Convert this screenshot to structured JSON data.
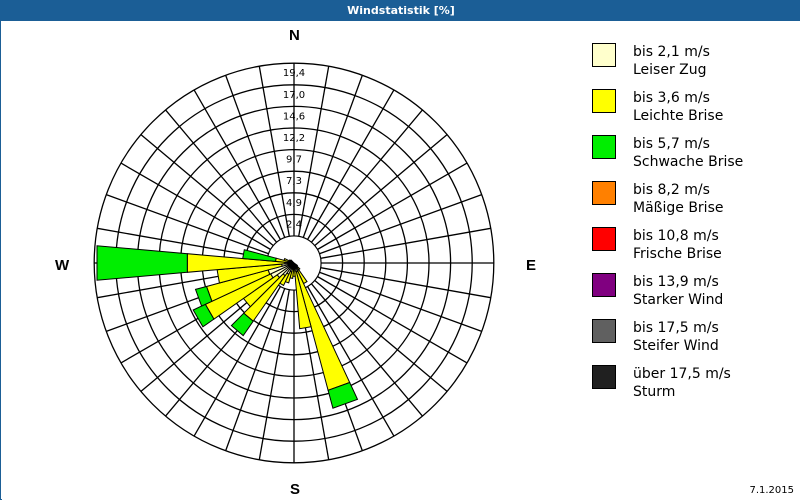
{
  "header": {
    "title": "Windstatistik [%]"
  },
  "compass": {
    "n": "N",
    "e": "E",
    "s": "S",
    "w": "W"
  },
  "ring_labels": [
    "2,4",
    "4,9",
    "7,3",
    "9,7",
    "12,2",
    "14,6",
    "17,0",
    "19,4"
  ],
  "legend": [
    {
      "line1": "bis 2,1 m/s",
      "line2": "Leiser Zug",
      "color": "#ffffcc"
    },
    {
      "line1": "bis 3,6 m/s",
      "line2": "Leichte Brise",
      "color": "#ffff00"
    },
    {
      "line1": "bis 5,7 m/s",
      "line2": "Schwache Brise",
      "color": "#00ee00"
    },
    {
      "line1": "bis 8,2 m/s",
      "line2": "Mäßige Brise",
      "color": "#ff8000"
    },
    {
      "line1": "bis 10,8 m/s",
      "line2": "Frische Brise",
      "color": "#ff0000"
    },
    {
      "line1": "bis 13,9 m/s",
      "line2": "Starker Wind",
      "color": "#800080"
    },
    {
      "line1": "bis 17,5 m/s",
      "line2": "Steifer Wind",
      "color": "#606060"
    },
    {
      "line1": "über 17,5 m/s",
      "line2": "Sturm",
      "color": "#202020"
    }
  ],
  "footer": {
    "date": "7.1.2015"
  },
  "chart_data": {
    "type": "polar-bar (wind rose)",
    "title": "Windstatistik [%]",
    "radial_ticks": [
      2.4,
      4.9,
      7.3,
      9.7,
      12.2,
      14.6,
      17.0,
      19.4
    ],
    "radial_max": 19.4,
    "sector_width_deg": 10,
    "directions_deg_note": "0 = North, clockwise",
    "series_names": [
      "bis 2,1 m/s",
      "bis 3,6 m/s",
      "bis 5,7 m/s"
    ],
    "petals": [
      {
        "dir": 150,
        "cum": [
          0.8,
          2.2,
          2.2
        ]
      },
      {
        "dir": 160,
        "cum": [
          0.9,
          12.8,
          14.6
        ]
      },
      {
        "dir": 170,
        "cum": [
          0.8,
          6.4,
          6.4
        ]
      },
      {
        "dir": 180,
        "cum": [
          0.6,
          1.3,
          1.3
        ]
      },
      {
        "dir": 190,
        "cum": [
          0.6,
          1.5,
          1.5
        ]
      },
      {
        "dir": 200,
        "cum": [
          0.9,
          2.0,
          2.0
        ]
      },
      {
        "dir": 210,
        "cum": [
          1.2,
          2.4,
          2.4
        ]
      },
      {
        "dir": 220,
        "cum": [
          1.5,
          6.9,
          8.6
        ]
      },
      {
        "dir": 230,
        "cum": [
          2.0,
          6.0,
          6.0
        ]
      },
      {
        "dir": 240,
        "cum": [
          2.5,
          9.5,
          10.8
        ]
      },
      {
        "dir": 250,
        "cum": [
          2.6,
          8.8,
          9.9
        ]
      },
      {
        "dir": 260,
        "cum": [
          1.2,
          7.5,
          7.5
        ]
      },
      {
        "dir": 270,
        "cum": [
          0.9,
          10.4,
          19.2
        ]
      },
      {
        "dir": 280,
        "cum": [
          0.4,
          1.8,
          5.0
        ]
      },
      {
        "dir": 290,
        "cum": [
          0.3,
          1.0,
          1.0
        ]
      },
      {
        "dir": 300,
        "cum": [
          0.2,
          0.5,
          0.5
        ]
      },
      {
        "dir": 310,
        "cum": [
          0.2,
          0.4,
          0.4
        ]
      },
      {
        "dir": 140,
        "cum": [
          0.3,
          0.8,
          0.8
        ]
      },
      {
        "dir": 130,
        "cum": [
          0.2,
          0.4,
          0.4
        ]
      }
    ]
  }
}
